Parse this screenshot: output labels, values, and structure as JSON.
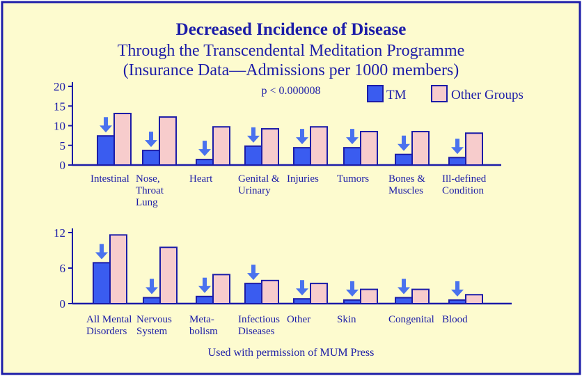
{
  "chart_data": [
    {
      "type": "bar",
      "title": "Decreased Incidence of Disease",
      "subtitle": [
        "Through the Transcendental Meditation Programme",
        "(Insurance Data—Admissions per 1000 members)"
      ],
      "annotation": "p < 0.000008",
      "legend": [
        "TM",
        "Other Groups"
      ],
      "legend_position": "top-right",
      "ylim": [
        0,
        20
      ],
      "yticks": [
        "20",
        "15",
        "10",
        "5",
        "0"
      ],
      "ytick_values": [
        20,
        15,
        10,
        5,
        0
      ],
      "categories": [
        [
          "Intestinal"
        ],
        [
          "Nose,",
          "Throat",
          "Lung"
        ],
        [
          "Heart"
        ],
        [
          "Genital &",
          "Urinary"
        ],
        [
          "Injuries"
        ],
        [
          "Tumors"
        ],
        [
          "Bones &",
          "Muscles"
        ],
        [
          "Ill-defined",
          "Condition"
        ]
      ],
      "series": [
        {
          "name": "TM",
          "values": [
            7.4,
            3.7,
            1.4,
            4.8,
            4.4,
            4.4,
            2.7,
            1.9
          ]
        },
        {
          "name": "Other Groups",
          "values": [
            13.1,
            12.2,
            9.7,
            9.2,
            9.7,
            8.5,
            8.5,
            8.1
          ]
        }
      ]
    },
    {
      "type": "bar",
      "ylim": [
        0,
        12
      ],
      "yticks": [
        "12",
        "6",
        "0"
      ],
      "ytick_values": [
        12,
        6,
        0
      ],
      "categories": [
        [
          "All Mental",
          "Disorders"
        ],
        [
          "Nervous",
          "System"
        ],
        [
          "Meta-",
          "bolism"
        ],
        [
          "Infectious",
          "Diseases"
        ],
        [
          "Other"
        ],
        [
          "Skin"
        ],
        [
          "Congenital"
        ],
        [
          "Blood"
        ]
      ],
      "series": [
        {
          "name": "TM",
          "values": [
            6.9,
            1.0,
            1.2,
            3.4,
            0.8,
            0.6,
            1.0,
            0.6
          ]
        },
        {
          "name": "Other Groups",
          "values": [
            11.6,
            9.5,
            4.9,
            3.9,
            3.4,
            2.4,
            2.4,
            1.5
          ]
        }
      ],
      "footer": "Used with permission of MUM Press"
    }
  ],
  "colors": {
    "background": "#fdfbcf",
    "tm": "#3a5cf0",
    "other": "#f7cccc",
    "text": "#1c1ca8",
    "arrow": "#4a72ee"
  }
}
